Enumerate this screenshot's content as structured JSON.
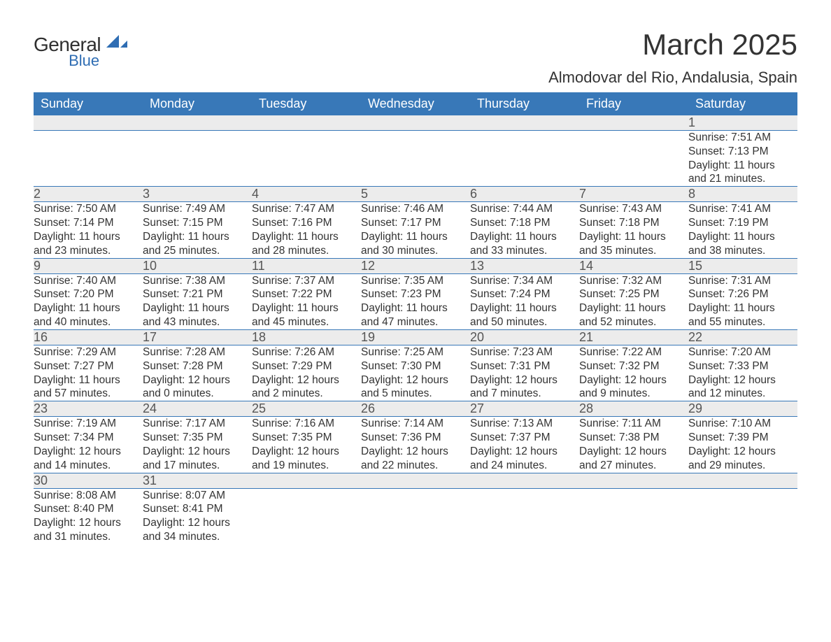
{
  "brand": {
    "top": "General",
    "bottom": "Blue"
  },
  "title": "March 2025",
  "location": "Almodovar del Rio, Andalusia, Spain",
  "colors": {
    "header_bg": "#3878b8",
    "header_text": "#ffffff",
    "daynum_bg": "#ececec",
    "daynum_text": "#555555",
    "body_text": "#333333",
    "rule": "#3878b8",
    "logo_accent": "#2f6db3"
  },
  "day_names": [
    "Sunday",
    "Monday",
    "Tuesday",
    "Wednesday",
    "Thursday",
    "Friday",
    "Saturday"
  ],
  "weeks": [
    [
      null,
      null,
      null,
      null,
      null,
      null,
      {
        "n": "1",
        "sr": "Sunrise: 7:51 AM",
        "ss": "Sunset: 7:13 PM",
        "d1": "Daylight: 11 hours",
        "d2": "and 21 minutes."
      }
    ],
    [
      {
        "n": "2",
        "sr": "Sunrise: 7:50 AM",
        "ss": "Sunset: 7:14 PM",
        "d1": "Daylight: 11 hours",
        "d2": "and 23 minutes."
      },
      {
        "n": "3",
        "sr": "Sunrise: 7:49 AM",
        "ss": "Sunset: 7:15 PM",
        "d1": "Daylight: 11 hours",
        "d2": "and 25 minutes."
      },
      {
        "n": "4",
        "sr": "Sunrise: 7:47 AM",
        "ss": "Sunset: 7:16 PM",
        "d1": "Daylight: 11 hours",
        "d2": "and 28 minutes."
      },
      {
        "n": "5",
        "sr": "Sunrise: 7:46 AM",
        "ss": "Sunset: 7:17 PM",
        "d1": "Daylight: 11 hours",
        "d2": "and 30 minutes."
      },
      {
        "n": "6",
        "sr": "Sunrise: 7:44 AM",
        "ss": "Sunset: 7:18 PM",
        "d1": "Daylight: 11 hours",
        "d2": "and 33 minutes."
      },
      {
        "n": "7",
        "sr": "Sunrise: 7:43 AM",
        "ss": "Sunset: 7:18 PM",
        "d1": "Daylight: 11 hours",
        "d2": "and 35 minutes."
      },
      {
        "n": "8",
        "sr": "Sunrise: 7:41 AM",
        "ss": "Sunset: 7:19 PM",
        "d1": "Daylight: 11 hours",
        "d2": "and 38 minutes."
      }
    ],
    [
      {
        "n": "9",
        "sr": "Sunrise: 7:40 AM",
        "ss": "Sunset: 7:20 PM",
        "d1": "Daylight: 11 hours",
        "d2": "and 40 minutes."
      },
      {
        "n": "10",
        "sr": "Sunrise: 7:38 AM",
        "ss": "Sunset: 7:21 PM",
        "d1": "Daylight: 11 hours",
        "d2": "and 43 minutes."
      },
      {
        "n": "11",
        "sr": "Sunrise: 7:37 AM",
        "ss": "Sunset: 7:22 PM",
        "d1": "Daylight: 11 hours",
        "d2": "and 45 minutes."
      },
      {
        "n": "12",
        "sr": "Sunrise: 7:35 AM",
        "ss": "Sunset: 7:23 PM",
        "d1": "Daylight: 11 hours",
        "d2": "and 47 minutes."
      },
      {
        "n": "13",
        "sr": "Sunrise: 7:34 AM",
        "ss": "Sunset: 7:24 PM",
        "d1": "Daylight: 11 hours",
        "d2": "and 50 minutes."
      },
      {
        "n": "14",
        "sr": "Sunrise: 7:32 AM",
        "ss": "Sunset: 7:25 PM",
        "d1": "Daylight: 11 hours",
        "d2": "and 52 minutes."
      },
      {
        "n": "15",
        "sr": "Sunrise: 7:31 AM",
        "ss": "Sunset: 7:26 PM",
        "d1": "Daylight: 11 hours",
        "d2": "and 55 minutes."
      }
    ],
    [
      {
        "n": "16",
        "sr": "Sunrise: 7:29 AM",
        "ss": "Sunset: 7:27 PM",
        "d1": "Daylight: 11 hours",
        "d2": "and 57 minutes."
      },
      {
        "n": "17",
        "sr": "Sunrise: 7:28 AM",
        "ss": "Sunset: 7:28 PM",
        "d1": "Daylight: 12 hours",
        "d2": "and 0 minutes."
      },
      {
        "n": "18",
        "sr": "Sunrise: 7:26 AM",
        "ss": "Sunset: 7:29 PM",
        "d1": "Daylight: 12 hours",
        "d2": "and 2 minutes."
      },
      {
        "n": "19",
        "sr": "Sunrise: 7:25 AM",
        "ss": "Sunset: 7:30 PM",
        "d1": "Daylight: 12 hours",
        "d2": "and 5 minutes."
      },
      {
        "n": "20",
        "sr": "Sunrise: 7:23 AM",
        "ss": "Sunset: 7:31 PM",
        "d1": "Daylight: 12 hours",
        "d2": "and 7 minutes."
      },
      {
        "n": "21",
        "sr": "Sunrise: 7:22 AM",
        "ss": "Sunset: 7:32 PM",
        "d1": "Daylight: 12 hours",
        "d2": "and 9 minutes."
      },
      {
        "n": "22",
        "sr": "Sunrise: 7:20 AM",
        "ss": "Sunset: 7:33 PM",
        "d1": "Daylight: 12 hours",
        "d2": "and 12 minutes."
      }
    ],
    [
      {
        "n": "23",
        "sr": "Sunrise: 7:19 AM",
        "ss": "Sunset: 7:34 PM",
        "d1": "Daylight: 12 hours",
        "d2": "and 14 minutes."
      },
      {
        "n": "24",
        "sr": "Sunrise: 7:17 AM",
        "ss": "Sunset: 7:35 PM",
        "d1": "Daylight: 12 hours",
        "d2": "and 17 minutes."
      },
      {
        "n": "25",
        "sr": "Sunrise: 7:16 AM",
        "ss": "Sunset: 7:35 PM",
        "d1": "Daylight: 12 hours",
        "d2": "and 19 minutes."
      },
      {
        "n": "26",
        "sr": "Sunrise: 7:14 AM",
        "ss": "Sunset: 7:36 PM",
        "d1": "Daylight: 12 hours",
        "d2": "and 22 minutes."
      },
      {
        "n": "27",
        "sr": "Sunrise: 7:13 AM",
        "ss": "Sunset: 7:37 PM",
        "d1": "Daylight: 12 hours",
        "d2": "and 24 minutes."
      },
      {
        "n": "28",
        "sr": "Sunrise: 7:11 AM",
        "ss": "Sunset: 7:38 PM",
        "d1": "Daylight: 12 hours",
        "d2": "and 27 minutes."
      },
      {
        "n": "29",
        "sr": "Sunrise: 7:10 AM",
        "ss": "Sunset: 7:39 PM",
        "d1": "Daylight: 12 hours",
        "d2": "and 29 minutes."
      }
    ],
    [
      {
        "n": "30",
        "sr": "Sunrise: 8:08 AM",
        "ss": "Sunset: 8:40 PM",
        "d1": "Daylight: 12 hours",
        "d2": "and 31 minutes."
      },
      {
        "n": "31",
        "sr": "Sunrise: 8:07 AM",
        "ss": "Sunset: 8:41 PM",
        "d1": "Daylight: 12 hours",
        "d2": "and 34 minutes."
      },
      null,
      null,
      null,
      null,
      null
    ]
  ]
}
